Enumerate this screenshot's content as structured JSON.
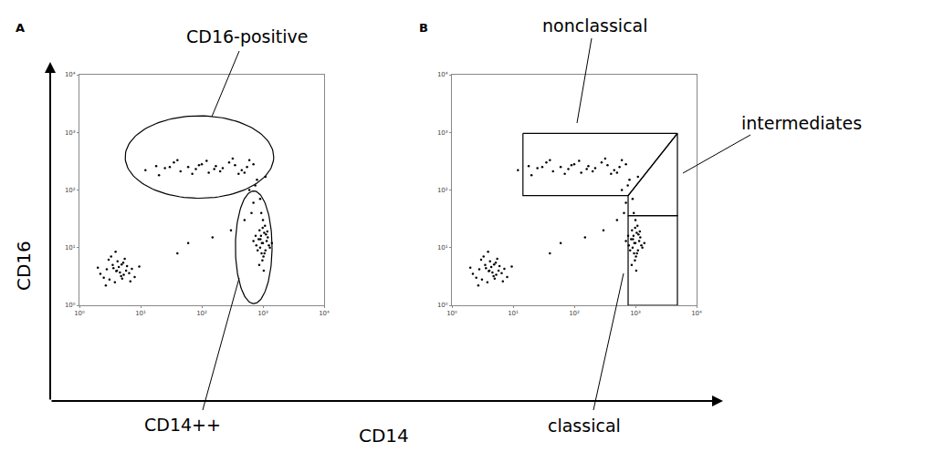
{
  "chart_data": {
    "type": "scatter",
    "x_label": "CD14",
    "y_label": "CD16",
    "log": true,
    "grid": false,
    "color": "#000000",
    "marker": "dot",
    "xlim": [
      1,
      10000
    ],
    "ylim": [
      1,
      10000
    ],
    "xticks": [
      {
        "value": 1,
        "label": "10⁰"
      },
      {
        "value": 10,
        "label": "10¹"
      },
      {
        "value": 100,
        "label": "10²"
      },
      {
        "value": 1000,
        "label": "10³"
      },
      {
        "value": 10000,
        "label": "10⁴"
      }
    ],
    "yticks": [
      {
        "value": 1,
        "label": "10⁰"
      },
      {
        "value": 10,
        "label": "10¹"
      },
      {
        "value": 100,
        "label": "10²"
      },
      {
        "value": 1000,
        "label": "10³"
      },
      {
        "value": 10000,
        "label": "10⁴"
      }
    ],
    "panels": [
      {
        "title": "A",
        "x": [
          2.2,
          2.8,
          3.1,
          3.5,
          4.0,
          4.4,
          4.8,
          5.2,
          5.8,
          6.5,
          3.0,
          3.8,
          4.2,
          5.0,
          2.5,
          6.0,
          7.2,
          3.3,
          4.6,
          5.5,
          2.0,
          8.0,
          3.6,
          4.9,
          6.8,
          2.7,
          5.3,
          4.1,
          3.9,
          9.5,
          900,
          1000,
          1100,
          850,
          950,
          1200,
          780,
          1050,
          980,
          1150,
          880,
          1020,
          930,
          1250,
          820,
          1080,
          960,
          1300,
          700,
          1000,
          1120,
          870,
          990,
          1060,
          1180,
          910,
          760,
          1400,
          1030,
          940,
          12,
          18,
          25,
          35,
          45,
          60,
          80,
          100,
          130,
          170,
          220,
          280,
          350,
          450,
          550,
          700,
          20,
          40,
          70,
          120,
          200,
          320,
          500,
          30,
          90,
          160,
          600,
          400,
          600,
          800,
          700,
          900,
          650,
          500,
          300,
          150,
          60,
          1100,
          750,
          40
        ],
        "values": [
          3.5,
          4.2,
          2.8,
          5.0,
          3.9,
          4.6,
          3.2,
          5.5,
          4.0,
          3.6,
          6.2,
          2.5,
          5.8,
          2.9,
          3.0,
          4.8,
          4.3,
          7.0,
          3.7,
          6.4,
          4.5,
          3.1,
          4.4,
          5.1,
          2.6,
          2.2,
          3.4,
          4.0,
          8.5,
          4.7,
          10,
          12,
          9,
          14,
          8,
          15,
          11,
          18,
          6,
          13,
          20,
          7,
          16,
          11,
          9,
          24,
          12,
          10,
          13,
          30,
          17,
          5,
          22,
          8,
          19,
          14,
          16,
          12,
          4,
          40,
          220,
          260,
          240,
          300,
          210,
          250,
          230,
          280,
          200,
          260,
          240,
          300,
          270,
          220,
          250,
          280,
          180,
          330,
          190,
          320,
          210,
          350,
          200,
          250,
          270,
          230,
          330,
          190,
          100,
          150,
          60,
          70,
          40,
          30,
          20,
          15,
          12,
          170,
          120,
          8
        ],
        "gates": [
          {
            "label": "CD16-positive",
            "shape": "ellipse",
            "x": [
              5.6,
              1500
            ],
            "y": [
              72,
              1940
            ]
          },
          {
            "label": "CD14++",
            "shape": "ellipse",
            "x": [
              355,
              1410
            ],
            "y": [
              1.07,
              96
            ]
          }
        ]
      },
      {
        "title": "B",
        "x": [
          2.2,
          2.8,
          3.1,
          3.5,
          4.0,
          4.4,
          4.8,
          5.2,
          5.8,
          6.5,
          3.0,
          3.8,
          4.2,
          5.0,
          2.5,
          6.0,
          7.2,
          3.3,
          4.6,
          5.5,
          2.0,
          8.0,
          3.6,
          4.9,
          6.8,
          2.7,
          5.3,
          4.1,
          3.9,
          9.5,
          900,
          1000,
          1100,
          850,
          950,
          1200,
          780,
          1050,
          980,
          1150,
          880,
          1020,
          930,
          1250,
          820,
          1080,
          960,
          1300,
          700,
          1000,
          1120,
          870,
          990,
          1060,
          1180,
          910,
          760,
          1400,
          1030,
          940,
          12,
          18,
          25,
          35,
          45,
          60,
          80,
          100,
          130,
          170,
          220,
          280,
          350,
          450,
          550,
          700,
          20,
          40,
          70,
          120,
          200,
          320,
          500,
          30,
          90,
          160,
          600,
          400,
          600,
          800,
          700,
          900,
          650,
          500,
          300,
          150,
          60,
          1100,
          750,
          40
        ],
        "values": [
          3.5,
          4.2,
          2.8,
          5.0,
          3.9,
          4.6,
          3.2,
          5.5,
          4.0,
          3.6,
          6.2,
          2.5,
          5.8,
          2.9,
          3.0,
          4.8,
          4.3,
          7.0,
          3.7,
          6.4,
          4.5,
          3.1,
          4.4,
          5.1,
          2.6,
          2.2,
          3.4,
          4.0,
          8.5,
          4.7,
          10,
          12,
          9,
          14,
          8,
          15,
          11,
          18,
          6,
          13,
          20,
          7,
          16,
          11,
          9,
          24,
          12,
          10,
          13,
          30,
          17,
          5,
          22,
          8,
          19,
          14,
          16,
          12,
          4,
          40,
          220,
          260,
          240,
          300,
          210,
          250,
          230,
          280,
          200,
          260,
          240,
          300,
          270,
          220,
          250,
          280,
          180,
          330,
          190,
          320,
          210,
          350,
          200,
          250,
          270,
          230,
          330,
          190,
          100,
          150,
          60,
          70,
          40,
          30,
          20,
          15,
          12,
          170,
          120,
          8
        ],
        "gates": [
          {
            "label": "nonclassical",
            "shape": "polygon",
            "x": [
              14.5,
              4860,
              760,
              14.5
            ],
            "y": [
              960,
              960,
              80,
              80
            ]
          },
          {
            "label": "intermediates",
            "shape": "polygon",
            "x": [
              4860,
              4860,
              760,
              760
            ],
            "y": [
              960,
              36,
              36,
              80
            ]
          },
          {
            "label": "classical",
            "shape": "polygon",
            "x": [
              760,
              4860,
              4860,
              760
            ],
            "y": [
              36,
              36,
              1,
              1
            ]
          }
        ]
      }
    ]
  }
}
